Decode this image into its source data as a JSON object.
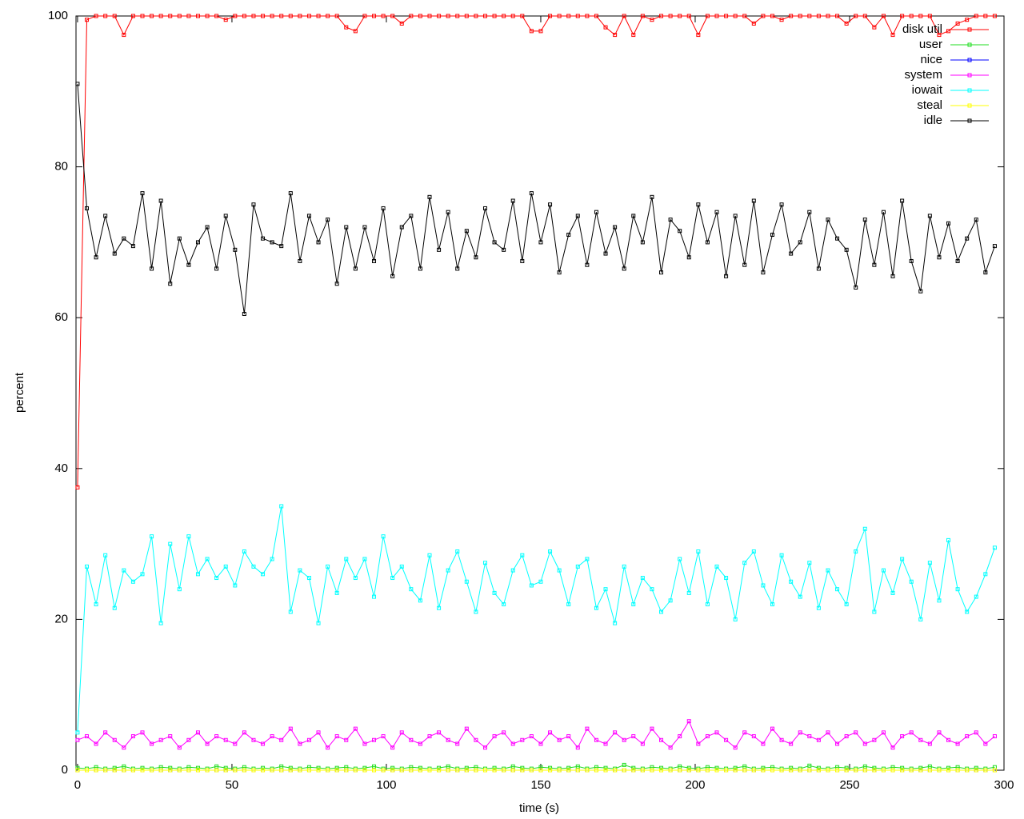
{
  "chart_data": {
    "type": "line",
    "x_label": "time (s)",
    "y_label": "percent",
    "xlim": [
      -0.5,
      300
    ],
    "xticks": [
      0,
      50,
      100,
      150,
      200,
      250,
      300
    ],
    "ylim": [
      0,
      100
    ],
    "yticks": [
      0,
      20,
      40,
      60,
      80,
      100
    ],
    "legend": "top right",
    "x": [
      0,
      3,
      6,
      9,
      12,
      15,
      18,
      21,
      24,
      27,
      30,
      33,
      36,
      39,
      42,
      45,
      48,
      51,
      54,
      57,
      60,
      63,
      66,
      69,
      72,
      75,
      78,
      81,
      84,
      87,
      90,
      93,
      96,
      99,
      102,
      105,
      108,
      111,
      114,
      117,
      120,
      123,
      126,
      129,
      132,
      135,
      138,
      141,
      144,
      147,
      150,
      153,
      156,
      159,
      162,
      165,
      168,
      171,
      174,
      177,
      180,
      183,
      186,
      189,
      192,
      195,
      198,
      201,
      204,
      207,
      210,
      213,
      216,
      219,
      222,
      225,
      228,
      231,
      234,
      237,
      240,
      243,
      246,
      249,
      252,
      255,
      258,
      261,
      264,
      267,
      270,
      273,
      276,
      279,
      282,
      285,
      288,
      291,
      294,
      297
    ],
    "series": [
      {
        "name": "disk util",
        "color": "#ff0000",
        "values": [
          37.5,
          99.5,
          100,
          100,
          100,
          97.5,
          100,
          100,
          100,
          100,
          100,
          100,
          100,
          100,
          100,
          100,
          99.5,
          100,
          100,
          100,
          100,
          100,
          100,
          100,
          100,
          100,
          100,
          100,
          100,
          98.5,
          98,
          100,
          100,
          100,
          100,
          99,
          100,
          100,
          100,
          100,
          100,
          100,
          100,
          100,
          100,
          100,
          100,
          100,
          100,
          98,
          98,
          100,
          100,
          100,
          100,
          100,
          100,
          98.5,
          97.5,
          100,
          97.5,
          100,
          99.5,
          100,
          100,
          100,
          100,
          97.5,
          100,
          100,
          100,
          100,
          100,
          99,
          100,
          100,
          99.5,
          100,
          100,
          100,
          100,
          100,
          100,
          99,
          100,
          100,
          98.5,
          100,
          97.5,
          100,
          100,
          100,
          100,
          97.5,
          98,
          99,
          99.5,
          100,
          100,
          100
        ]
      },
      {
        "name": "user",
        "color": "#22dd22",
        "values": [
          0.3,
          0.2,
          0.4,
          0.2,
          0.3,
          0.5,
          0.2,
          0.3,
          0.2,
          0.4,
          0.3,
          0.2,
          0.4,
          0.3,
          0.2,
          0.5,
          0.3,
          0.2,
          0.4,
          0.2,
          0.3,
          0.2,
          0.5,
          0.3,
          0.2,
          0.4,
          0.3,
          0.2,
          0.3,
          0.4,
          0.2,
          0.3,
          0.5,
          0.2,
          0.3,
          0.2,
          0.4,
          0.3,
          0.2,
          0.3,
          0.5,
          0.2,
          0.3,
          0.4,
          0.2,
          0.3,
          0.2,
          0.5,
          0.3,
          0.2,
          0.4,
          0.3,
          0.2,
          0.3,
          0.5,
          0.2,
          0.4,
          0.3,
          0.2,
          0.7,
          0.3,
          0.2,
          0.4,
          0.3,
          0.2,
          0.5,
          0.3,
          0.2,
          0.4,
          0.3,
          0.2,
          0.3,
          0.5,
          0.2,
          0.3,
          0.4,
          0.2,
          0.3,
          0.2,
          0.6,
          0.3,
          0.2,
          0.4,
          0.3,
          0.2,
          0.5,
          0.3,
          0.2,
          0.4,
          0.3,
          0.2,
          0.3,
          0.5,
          0.2,
          0.3,
          0.4,
          0.2,
          0.3,
          0.2,
          0.4
        ]
      },
      {
        "name": "nice",
        "color": "#0000ff",
        "values": [
          0,
          0,
          0,
          0,
          0,
          0,
          0,
          0,
          0,
          0,
          0,
          0,
          0,
          0,
          0,
          0,
          0,
          0,
          0,
          0,
          0,
          0,
          0,
          0,
          0,
          0,
          0,
          0,
          0,
          0,
          0,
          0,
          0,
          0,
          0,
          0,
          0,
          0,
          0,
          0,
          0,
          0,
          0,
          0,
          0,
          0,
          0,
          0,
          0,
          0,
          0,
          0,
          0,
          0,
          0,
          0,
          0,
          0,
          0,
          0,
          0,
          0,
          0,
          0,
          0,
          0,
          0,
          0,
          0,
          0,
          0,
          0,
          0,
          0,
          0,
          0,
          0,
          0,
          0,
          0,
          0,
          0,
          0,
          0,
          0,
          0,
          0,
          0,
          0,
          0,
          0,
          0,
          0,
          0,
          0,
          0,
          0,
          0,
          0,
          0
        ]
      },
      {
        "name": "system",
        "color": "#ff00ff",
        "values": [
          4,
          4.5,
          3.5,
          5,
          4,
          3,
          4.5,
          5,
          3.5,
          4,
          4.5,
          3,
          4,
          5,
          3.5,
          4.5,
          4,
          3.5,
          5,
          4,
          3.5,
          4.5,
          4,
          5.5,
          3.5,
          4,
          5,
          3,
          4.5,
          4,
          5.5,
          3.5,
          4,
          4.5,
          3,
          5,
          4,
          3.5,
          4.5,
          5,
          4,
          3.5,
          5.5,
          4,
          3,
          4.5,
          5,
          3.5,
          4,
          4.5,
          3.5,
          5,
          4,
          4.5,
          3,
          5.5,
          4,
          3.5,
          5,
          4,
          4.5,
          3.5,
          5.5,
          4,
          3,
          4.5,
          6.5,
          3.5,
          4.5,
          5,
          4,
          3,
          5,
          4.5,
          3.5,
          5.5,
          4,
          3.5,
          5,
          4.5,
          4,
          5,
          3.5,
          4.5,
          5,
          3.5,
          4,
          5,
          3,
          4.5,
          5,
          4,
          3.5,
          5,
          4,
          3.5,
          4.5,
          5,
          3.5,
          4.5
        ]
      },
      {
        "name": "iowait",
        "color": "#00ffff",
        "values": [
          5,
          27,
          22,
          28.5,
          21.5,
          26.5,
          25,
          26,
          31,
          19.5,
          30,
          24,
          31,
          26,
          28,
          25.5,
          27,
          24.5,
          29,
          27,
          26,
          28,
          35,
          21,
          26.5,
          25.5,
          19.5,
          27,
          23.5,
          28,
          25.5,
          28,
          23,
          31,
          25.5,
          27,
          24,
          22.5,
          28.5,
          21.5,
          26.5,
          29,
          25,
          21,
          27.5,
          23.5,
          22,
          26.5,
          28.5,
          24.5,
          25,
          29,
          26.5,
          22,
          27,
          28,
          21.5,
          24,
          19.5,
          27,
          22,
          25.5,
          24,
          21,
          22.5,
          28,
          23.5,
          29,
          22,
          27,
          25.5,
          20,
          27.5,
          29,
          24.5,
          22,
          28.5,
          25,
          23,
          27.5,
          21.5,
          26.5,
          24,
          22,
          29,
          32,
          21,
          26.5,
          23.5,
          28,
          25,
          20,
          27.5,
          22.5,
          30.5,
          24,
          21,
          23,
          26,
          29.5
        ]
      },
      {
        "name": "steal",
        "color": "#ffff00",
        "values": [
          0,
          0,
          0,
          0,
          0,
          0,
          0,
          0,
          0,
          0,
          0,
          0,
          0,
          0,
          0,
          0,
          0,
          0,
          0,
          0,
          0,
          0,
          0,
          0,
          0,
          0,
          0,
          0,
          0,
          0,
          0,
          0,
          0,
          0,
          0,
          0,
          0,
          0,
          0,
          0,
          0,
          0,
          0,
          0,
          0,
          0,
          0,
          0,
          0,
          0,
          0,
          0,
          0,
          0,
          0,
          0,
          0,
          0,
          0,
          0,
          0,
          0,
          0,
          0,
          0,
          0,
          0,
          0,
          0,
          0,
          0,
          0,
          0,
          0,
          0,
          0,
          0,
          0,
          0,
          0,
          0,
          0,
          0,
          0,
          0,
          0,
          0,
          0,
          0,
          0,
          0,
          0,
          0,
          0,
          0,
          0,
          0,
          0,
          0,
          0
        ]
      },
      {
        "name": "idle",
        "color": "#000000",
        "values": [
          91,
          74.5,
          68,
          73.5,
          68.5,
          70.5,
          69.5,
          76.5,
          66.5,
          75.5,
          64.5,
          70.5,
          67,
          70,
          72,
          66.5,
          73.5,
          69,
          60.5,
          75,
          70.5,
          70,
          69.5,
          76.5,
          67.5,
          73.5,
          70,
          73,
          64.5,
          72,
          66.5,
          72,
          67.5,
          74.5,
          65.5,
          72,
          73.5,
          66.5,
          76,
          69,
          74,
          66.5,
          71.5,
          68,
          74.5,
          70,
          69,
          75.5,
          67.5,
          76.5,
          70,
          75,
          66,
          71,
          73.5,
          67,
          74,
          68.5,
          72,
          66.5,
          73.5,
          70,
          76,
          66,
          73,
          71.5,
          68,
          75,
          70,
          74,
          65.5,
          73.5,
          67,
          75.5,
          66,
          71,
          75,
          68.5,
          70,
          74,
          66.5,
          73,
          70.5,
          69,
          64,
          73,
          67,
          74,
          65.5,
          75.5,
          67.5,
          63.5,
          73.5,
          68,
          72.5,
          67.5,
          70.5,
          73,
          66,
          69.5
        ]
      }
    ]
  }
}
